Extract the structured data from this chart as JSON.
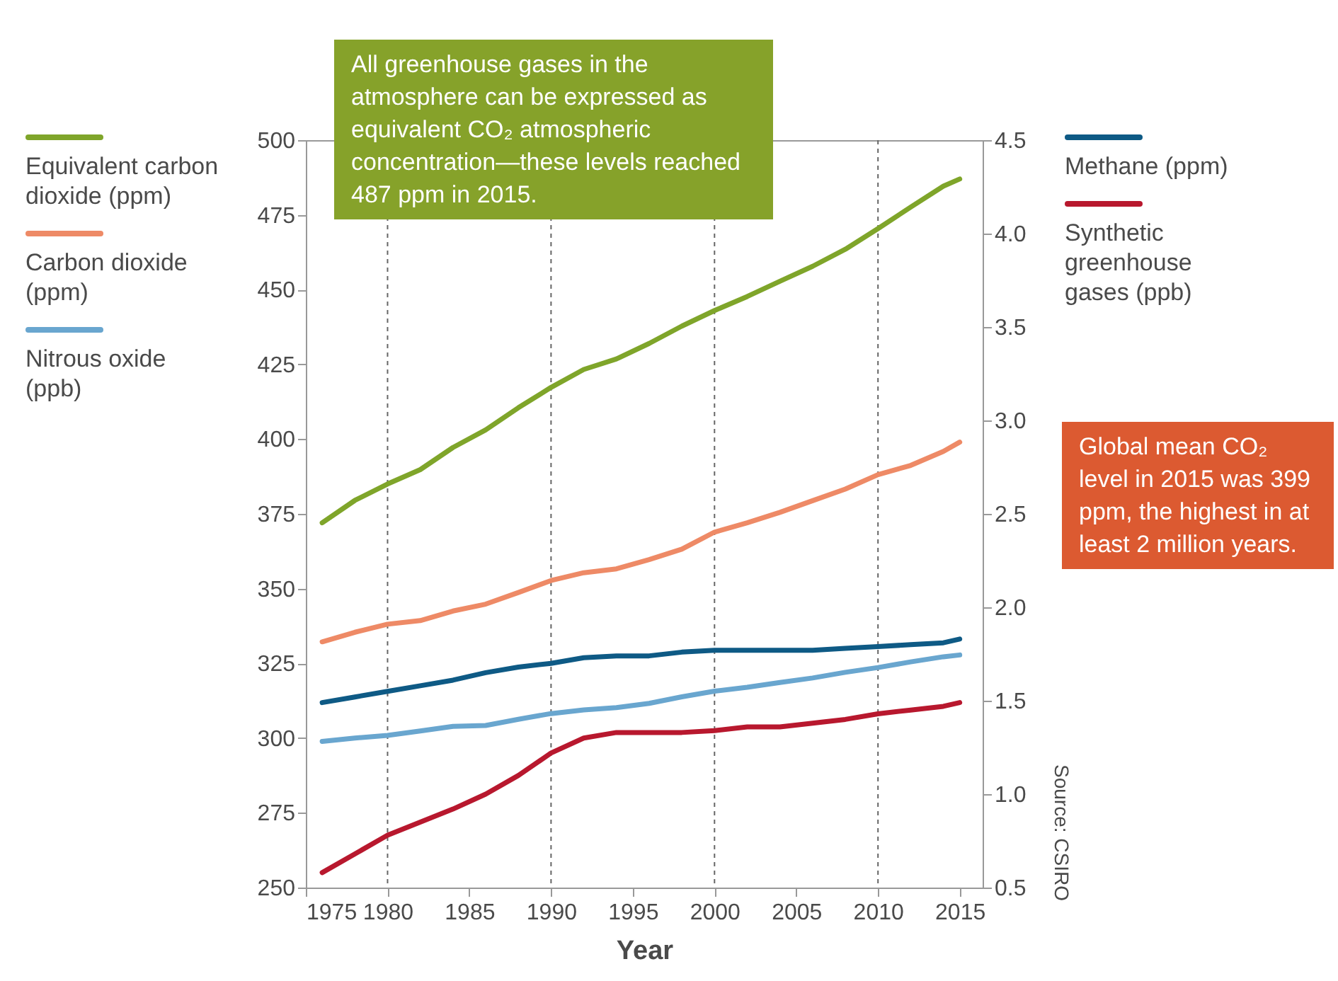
{
  "chart_data": {
    "type": "line",
    "xlabel": "Year",
    "x": [
      1976,
      1978,
      1980,
      1982,
      1984,
      1986,
      1988,
      1990,
      1992,
      1994,
      1996,
      1998,
      2000,
      2002,
      2004,
      2006,
      2008,
      2010,
      2012,
      2014,
      2015
    ],
    "series": [
      {
        "name": "Equivalent carbon dioxide (ppm)",
        "color": "#7fa52a",
        "values": [
          372,
          379.5,
          385,
          389.8,
          397.2,
          403.1,
          410.5,
          417.3,
          423.3,
          426.8,
          432,
          437.8,
          443,
          447.7,
          452.8,
          457.8,
          463.5,
          470.4,
          477.6,
          484.6,
          487
        ]
      },
      {
        "name": "Carbon dioxide (ppm)",
        "color": "#ee8a66",
        "values": [
          332.2,
          335.4,
          338.1,
          339.3,
          342.5,
          344.8,
          348.7,
          352.7,
          355.3,
          356.6,
          359.7,
          363.2,
          368.9,
          372,
          375.5,
          379.4,
          383.3,
          388.1,
          391.2,
          395.9,
          399
        ]
      },
      {
        "name": "Nitrous oxide (ppb)",
        "color": "#69a6cf",
        "values": [
          298.9,
          300,
          300.9,
          302.4,
          303.9,
          304.2,
          306.3,
          308.2,
          309.4,
          310.2,
          311.6,
          313.8,
          315.7,
          317,
          318.6,
          320.1,
          322,
          323.6,
          325.5,
          327.2,
          327.8
        ]
      },
      {
        "name": "Methane (ppm)",
        "color": "#0e5a85",
        "axis": "y2",
        "values": [
          1.49,
          1.52,
          1.55,
          1.58,
          1.61,
          1.65,
          1.68,
          1.7,
          1.73,
          1.74,
          1.74,
          1.76,
          1.77,
          1.77,
          1.77,
          1.77,
          1.78,
          1.79,
          1.8,
          1.81,
          1.83
        ]
      },
      {
        "name": "Synthetic greenhouse gases (ppb)",
        "color": "#b8182e",
        "axis": "y2",
        "values": [
          0.58,
          0.68,
          0.78,
          0.85,
          0.92,
          1.0,
          1.1,
          1.22,
          1.3,
          1.33,
          1.33,
          1.33,
          1.34,
          1.36,
          1.36,
          1.38,
          1.4,
          1.43,
          1.45,
          1.47,
          1.49
        ]
      }
    ],
    "xlim": [
      1975,
      2016.4
    ],
    "xticks": [
      1975,
      1980,
      1985,
      1990,
      1995,
      2000,
      2005,
      2010,
      2015
    ],
    "ylim": [
      250,
      500
    ],
    "yticks": [
      250,
      275,
      300,
      325,
      350,
      375,
      400,
      425,
      450,
      475,
      500
    ],
    "y2lim": [
      0.5,
      4.5
    ],
    "y2ticks": [
      {
        "value": 0.5,
        "label": "0.5"
      },
      {
        "value": 1,
        "label": "1.0"
      },
      {
        "value": 1.5,
        "label": "1.5"
      },
      {
        "value": 2,
        "label": "2.0"
      },
      {
        "value": 2.5,
        "label": "2.5"
      },
      {
        "value": 3,
        "label": "3.0"
      },
      {
        "value": 3.5,
        "label": "3.5"
      },
      {
        "value": 4,
        "label": "4.0"
      },
      {
        "value": 4.5,
        "label": "4.5"
      }
    ],
    "ref_lines": [
      {
        "axis": "x",
        "value": 1980,
        "line_style": "dashed"
      },
      {
        "axis": "x",
        "value": 1990,
        "line_style": "dashed"
      },
      {
        "axis": "x",
        "value": 2000,
        "line_style": "dashed"
      },
      {
        "axis": "x",
        "value": 2010,
        "line_style": "dashed"
      }
    ],
    "legend": "left",
    "annotations": [
      "All greenhouse gases in the atmosphere can be expressed as equivalent CO₂ atmospheric concentration—these levels reached 487 ppm in 2015.",
      "Global mean CO₂ level in 2015 was 399 ppm, the highest in at least 2 million years.",
      "Source: CSIRO"
    ]
  }
}
